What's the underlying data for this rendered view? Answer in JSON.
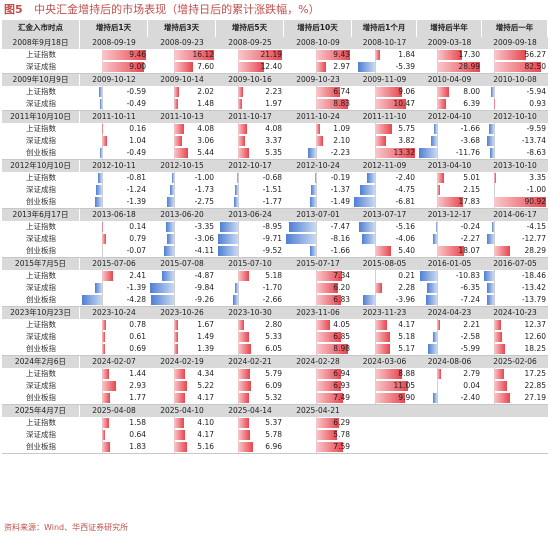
{
  "caption": {
    "figure": "图5",
    "title": "中央汇金增持后的市场表现（增持日后的累计涨跌幅，%）"
  },
  "headers": [
    "汇金入市时点",
    "增持后1天",
    "增持后3天",
    "增持后5天",
    "增持后10天",
    "增持后1个月",
    "增持后半年",
    "增持后一年"
  ],
  "groups": [
    {
      "entry": "2008年9月18日",
      "dates": [
        "2008-09-19",
        "2008-09-23",
        "2008-09-25",
        "2008-10-09",
        "2008-10-17",
        "2009-03-18",
        "2009-09-18"
      ],
      "rows": [
        {
          "label": "上证指数",
          "values": [
            9.46,
            16.12,
            21.19,
            9.43,
            1.84,
            17.3,
            56.27
          ]
        },
        {
          "label": "深证成指",
          "values": [
            9.0,
            7.6,
            12.4,
            2.97,
            -5.39,
            28.99,
            82.5
          ]
        }
      ]
    },
    {
      "entry": "2009年10月9日",
      "dates": [
        "2009-10-12",
        "2009-10-14",
        "2009-10-16",
        "2009-10-23",
        "2009-11-09",
        "2010-04-09",
        "2010-10-08"
      ],
      "rows": [
        {
          "label": "上证指数",
          "values": [
            -0.59,
            2.02,
            2.23,
            6.74,
            9.06,
            8.0,
            -5.94
          ]
        },
        {
          "label": "深证成指",
          "values": [
            -0.49,
            1.48,
            1.97,
            8.83,
            10.47,
            6.39,
            0.93
          ]
        }
      ]
    },
    {
      "entry": "2011年10月10日",
      "dates": [
        "2011-10-11",
        "2011-10-13",
        "2011-10-17",
        "2011-10-24",
        "2011-11-10",
        "2012-04-10",
        "2012-10-10"
      ],
      "rows": [
        {
          "label": "上证指数",
          "values": [
            0.16,
            4.08,
            4.08,
            1.09,
            5.75,
            -1.66,
            -9.59
          ]
        },
        {
          "label": "深证成指",
          "values": [
            1.04,
            3.06,
            3.37,
            2.1,
            3.82,
            -3.68,
            -13.74
          ]
        },
        {
          "label": "创业板指",
          "values": [
            -0.49,
            5.44,
            5.35,
            -2.23,
            13.32,
            -11.76,
            -8.63
          ]
        }
      ]
    },
    {
      "entry": "2012年10月10日",
      "dates": [
        "2012-10-11",
        "2012-10-15",
        "2012-10-17",
        "2012-10-24",
        "2012-11-09",
        "2013-04-10",
        "2013-10-10"
      ],
      "rows": [
        {
          "label": "上证指数",
          "values": [
            -0.81,
            -1.0,
            -0.68,
            -0.19,
            -2.4,
            5.01,
            3.35
          ]
        },
        {
          "label": "深证成指",
          "values": [
            -1.24,
            -1.73,
            -1.51,
            -1.37,
            -4.75,
            2.15,
            -1.0
          ]
        },
        {
          "label": "创业板指",
          "values": [
            -1.39,
            -2.75,
            -1.77,
            -1.49,
            -6.81,
            17.83,
            90.92
          ]
        }
      ]
    },
    {
      "entry": "2013年6月17日",
      "dates": [
        "2013-06-18",
        "2013-06-20",
        "2013-06-24",
        "2013-07-01",
        "2013-07-17",
        "2013-12-17",
        "2014-06-17"
      ],
      "rows": [
        {
          "label": "上证指数",
          "values": [
            0.14,
            -3.35,
            -8.95,
            -7.47,
            -5.16,
            -0.24,
            -4.15
          ]
        },
        {
          "label": "深证成指",
          "values": [
            0.79,
            -3.06,
            -9.71,
            -8.16,
            -4.06,
            -2.27,
            -12.77
          ]
        },
        {
          "label": "创业板指",
          "values": [
            -0.07,
            -4.11,
            -9.52,
            -1.66,
            5.4,
            18.07,
            28.29
          ]
        }
      ]
    },
    {
      "entry": "2015年7月5日",
      "dates": [
        "2015-07-06",
        "2015-07-08",
        "2015-07-10",
        "2015-07-17",
        "2015-08-05",
        "2016-01-05",
        "2016-07-05"
      ],
      "rows": [
        {
          "label": "上证指数",
          "values": [
            2.41,
            -4.87,
            5.18,
            7.34,
            0.21,
            -10.83,
            -18.46
          ]
        },
        {
          "label": "深证成指",
          "values": [
            -1.39,
            -9.84,
            -1.7,
            6.2,
            2.28,
            -6.35,
            -13.42
          ]
        },
        {
          "label": "创业板指",
          "values": [
            -4.28,
            -9.26,
            -2.66,
            6.83,
            -3.96,
            -7.24,
            -13.79
          ]
        }
      ]
    },
    {
      "entry": "2023年10月23日",
      "dates": [
        "2023-10-24",
        "2023-10-26",
        "2023-10-30",
        "2023-11-06",
        "2023-11-23",
        "2024-04-23",
        "2024-10-23"
      ],
      "rows": [
        {
          "label": "上证指数",
          "values": [
            0.78,
            1.67,
            2.8,
            4.05,
            4.17,
            2.21,
            12.37
          ]
        },
        {
          "label": "深证成指",
          "values": [
            0.61,
            1.49,
            5.33,
            6.85,
            5.18,
            -2.58,
            12.6
          ]
        },
        {
          "label": "创业板指",
          "values": [
            0.69,
            1.39,
            6.05,
            8.98,
            5.17,
            -5.99,
            18.25
          ]
        }
      ]
    },
    {
      "entry": "2024年2月6日",
      "dates": [
        "2024-02-07",
        "2024-02-19",
        "2024-02-21",
        "2024-02-28",
        "2024-03-06",
        "2024-08-06",
        "2025-02-06"
      ],
      "rows": [
        {
          "label": "上证指数",
          "values": [
            1.44,
            4.34,
            5.79,
            6.94,
            8.88,
            2.79,
            17.25
          ]
        },
        {
          "label": "深证成指",
          "values": [
            2.93,
            5.22,
            6.09,
            6.93,
            11.05,
            0.04,
            22.85
          ]
        },
        {
          "label": "创业板指",
          "values": [
            1.77,
            4.17,
            5.32,
            7.49,
            9.9,
            -2.4,
            27.19
          ]
        }
      ]
    },
    {
      "entry": "2025年4月7日",
      "dates": [
        "2025-04-08",
        "2025-04-10",
        "2025-04-14",
        "2025-04-21",
        "",
        "",
        ""
      ],
      "rows": [
        {
          "label": "上证指数",
          "values": [
            1.58,
            4.1,
            5.37,
            6.29,
            null,
            null,
            null
          ]
        },
        {
          "label": "深证成指",
          "values": [
            0.64,
            4.17,
            5.78,
            5.78,
            null,
            null,
            null
          ]
        },
        {
          "label": "创业板指",
          "values": [
            1.83,
            5.16,
            6.96,
            7.59,
            null,
            null,
            null
          ]
        }
      ]
    }
  ],
  "colors": {
    "positive": "#e8454e",
    "negative": "#4f7fd3",
    "header_bg": "#d9d9d9",
    "caption": "#c0504d"
  },
  "footer": "资料来源：Wind、华西证券研究所"
}
